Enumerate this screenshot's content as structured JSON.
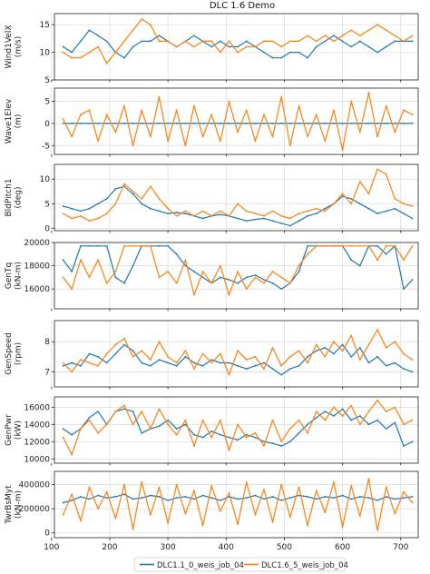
{
  "chart_data": {
    "type": "line",
    "title": "DLC 1.6 Demo",
    "xlim": [
      105,
      730
    ],
    "x_ticks": [
      100,
      200,
      300,
      400,
      500,
      600,
      700
    ],
    "grid": true,
    "legend_position": "bottom-center",
    "series_names": [
      "DLC1.1_0_weis_job_04",
      "DLC1.6_5_weis_job_04"
    ],
    "series_colors": [
      "#1f77b4",
      "#ff7f0e"
    ],
    "x": [
      120,
      135,
      150,
      165,
      180,
      195,
      210,
      225,
      240,
      255,
      270,
      285,
      300,
      315,
      330,
      345,
      360,
      375,
      390,
      405,
      420,
      435,
      450,
      465,
      480,
      495,
      510,
      525,
      540,
      555,
      570,
      585,
      600,
      615,
      630,
      645,
      660,
      675,
      690,
      705,
      720
    ],
    "panels": [
      {
        "ylabel_lines": [
          "Wind1VelX",
          "(m/s)"
        ],
        "ylim": [
          5,
          17
        ],
        "y_ticks": [
          5,
          10,
          15
        ],
        "y_tick_labels": [
          "5",
          "10",
          "15"
        ],
        "series": [
          {
            "name": "DLC1.1_0_weis_job_04",
            "values": [
              11,
              10,
              12,
              14,
              13,
              12,
              10,
              9,
              11,
              12,
              12,
              13,
              12,
              11,
              12,
              13,
              12,
              11,
              12,
              11,
              11,
              12,
              11,
              10,
              9,
              9,
              10,
              10,
              9,
              11,
              12,
              13,
              12,
              11,
              12,
              11,
              10,
              11,
              12,
              12,
              12
            ]
          },
          {
            "name": "DLC1.6_5_weis_job_04",
            "values": [
              10,
              9,
              9,
              10,
              11,
              8,
              10,
              12,
              14,
              16,
              15,
              12,
              12,
              11,
              12,
              11,
              12,
              12,
              10,
              12,
              10,
              11,
              11,
              12,
              12,
              11,
              12,
              12,
              13,
              12,
              13,
              12,
              13,
              14,
              13,
              14,
              15,
              14,
              13,
              12,
              13
            ]
          }
        ]
      },
      {
        "ylabel_lines": [
          "Wave1Elev",
          "(m)"
        ],
        "ylim": [
          -7,
          8
        ],
        "y_ticks": [
          -5,
          0,
          5
        ],
        "y_tick_labels": [
          "-5",
          "0",
          "5"
        ],
        "series": [
          {
            "name": "DLC1.1_0_weis_job_04",
            "values": [
              0,
              0,
              0,
              0,
              0,
              0,
              0,
              0,
              0,
              0,
              0,
              0,
              0,
              0,
              0,
              0,
              0,
              0,
              0,
              0,
              0,
              0,
              0,
              0,
              0,
              0,
              0,
              0,
              0,
              0,
              0,
              0,
              0,
              0,
              0,
              0,
              0,
              0,
              0,
              0,
              0
            ]
          },
          {
            "name": "DLC1.6_5_weis_job_04",
            "values": [
              1,
              -3,
              2,
              3,
              -4,
              2,
              -2,
              4,
              -5,
              3,
              -3,
              6,
              -4,
              3,
              -5,
              4,
              -3,
              2,
              -4,
              5,
              -2,
              3,
              -4,
              2,
              -3,
              6,
              -5,
              4,
              -3,
              2,
              -4,
              3,
              -6,
              5,
              -2,
              7,
              -3,
              4,
              -2,
              3,
              2
            ]
          }
        ]
      },
      {
        "ylabel_lines": [
          "BldPitch1",
          "(deg)"
        ],
        "ylim": [
          -0.5,
          13
        ],
        "y_ticks": [
          0,
          5,
          10
        ],
        "y_tick_labels": [
          "0",
          "5",
          "10"
        ],
        "series": [
          {
            "name": "DLC1.1_0_weis_job_04",
            "values": [
              4.5,
              4,
              3.5,
              4,
              5,
              6,
              8,
              8.5,
              7,
              5,
              4,
              3.5,
              3,
              3.2,
              3,
              2.5,
              2,
              2.5,
              2.8,
              2.5,
              2,
              1.5,
              1.8,
              2,
              1.5,
              1,
              0.5,
              1.5,
              2.5,
              3,
              4,
              5,
              6.5,
              6,
              5,
              4,
              3,
              3.5,
              4,
              3,
              2
            ]
          },
          {
            "name": "DLC1.6_5_weis_job_04",
            "values": [
              3,
              2,
              2.5,
              1.5,
              2,
              3,
              5,
              9,
              7.5,
              6,
              8.5,
              6,
              4,
              2.5,
              3.5,
              2.5,
              3.5,
              2.5,
              3.5,
              2.5,
              5,
              3.5,
              3,
              2.5,
              3.5,
              2.5,
              2,
              3,
              3.5,
              4,
              3.5,
              5,
              7,
              5,
              9.5,
              7,
              12,
              11,
              6,
              5,
              4.5
            ]
          }
        ]
      },
      {
        "ylabel_lines": [
          "GenTq",
          "(kN-m)"
        ],
        "ylim": [
          14300,
          20000
        ],
        "y_ticks": [
          16000,
          18000,
          20000
        ],
        "y_tick_labels": [
          "16000",
          "18000",
          "20000"
        ],
        "series": [
          {
            "name": "DLC1.1_0_weis_job_04",
            "values": [
              18500,
              17500,
              19700,
              19700,
              19700,
              19700,
              17000,
              16500,
              18000,
              19700,
              19700,
              19700,
              19700,
              19000,
              18000,
              17500,
              17000,
              16500,
              17000,
              16800,
              16500,
              17000,
              17200,
              16800,
              16500,
              16000,
              16500,
              17500,
              19700,
              19700,
              19700,
              19700,
              19700,
              18500,
              18000,
              19700,
              19700,
              19000,
              19700,
              16000,
              16800
            ]
          },
          {
            "name": "DLC1.6_5_weis_job_04",
            "values": [
              17000,
              16000,
              18500,
              17000,
              18500,
              16500,
              17500,
              19700,
              19700,
              19700,
              19700,
              17000,
              17500,
              16500,
              18500,
              15500,
              17500,
              16500,
              18000,
              15500,
              17500,
              16000,
              17000,
              16500,
              17500,
              17000,
              16500,
              18000,
              19000,
              19700,
              19700,
              19700,
              19700,
              19700,
              19700,
              19700,
              18500,
              19700,
              19700,
              18500,
              19700
            ]
          }
        ]
      },
      {
        "ylabel_lines": [
          "GenSpeed",
          "(rpm)"
        ],
        "ylim": [
          6.5,
          8.7
        ],
        "y_ticks": [
          7,
          8
        ],
        "y_tick_labels": [
          "7",
          "8"
        ],
        "series": [
          {
            "name": "DLC1.1_0_weis_job_04",
            "values": [
              7.2,
              7.3,
              7.2,
              7.6,
              7.5,
              7.3,
              7.6,
              7.9,
              7.7,
              7.3,
              7.2,
              7.4,
              7.3,
              7.2,
              7.5,
              7.3,
              7.2,
              7.4,
              7.3,
              7.3,
              7.2,
              7.1,
              7.2,
              7.3,
              7.1,
              6.9,
              7.1,
              7.2,
              7.5,
              7.7,
              7.8,
              7.6,
              7.9,
              7.5,
              7.8,
              7.3,
              7.5,
              7.2,
              7.3,
              7.1,
              7.0
            ]
          },
          {
            "name": "DLC1.6_5_weis_job_04",
            "values": [
              7.3,
              7.0,
              7.4,
              7.3,
              7.2,
              7.6,
              7.9,
              8.1,
              7.5,
              7.7,
              7.4,
              8.0,
              7.5,
              7.3,
              7.7,
              7.1,
              7.6,
              7.3,
              7.6,
              6.9,
              7.7,
              7.4,
              7.5,
              7.1,
              7.8,
              7.2,
              7.5,
              7.7,
              7.3,
              7.9,
              7.5,
              8.0,
              7.7,
              8.2,
              7.4,
              7.9,
              8.4,
              7.8,
              8.0,
              7.6,
              7.4
            ]
          }
        ]
      },
      {
        "ylabel_lines": [
          "GenPwr",
          "(kW)"
        ],
        "ylim": [
          9500,
          17200
        ],
        "y_ticks": [
          10000,
          12000,
          14000,
          16000
        ],
        "y_tick_labels": [
          "10000",
          "12000",
          "14000",
          "16000"
        ],
        "series": [
          {
            "name": "DLC1.1_0_weis_job_04",
            "values": [
              13500,
              12800,
              13500,
              14800,
              15500,
              14000,
              15500,
              15800,
              15500,
              13000,
              13500,
              13800,
              14500,
              13500,
              14000,
              12800,
              12500,
              13200,
              12800,
              12500,
              12200,
              12800,
              12500,
              12000,
              11800,
              11500,
              12000,
              13000,
              14000,
              14800,
              15500,
              15000,
              15800,
              14500,
              15000,
              14000,
              14500,
              13500,
              14200,
              11500,
              12000
            ]
          },
          {
            "name": "DLC1.6_5_weis_job_04",
            "values": [
              12500,
              10500,
              13500,
              14500,
              13000,
              14000,
              15500,
              16200,
              14000,
              15500,
              13500,
              15800,
              14000,
              12800,
              14500,
              11500,
              14500,
              12500,
              14500,
              11000,
              14000,
              12500,
              13000,
              11500,
              14500,
              12000,
              13500,
              14500,
              13000,
              15500,
              14500,
              16000,
              15000,
              16200,
              14000,
              15500,
              16800,
              15500,
              16000,
              14000,
              14500
            ]
          }
        ]
      },
      {
        "ylabel_lines": [
          "TwrBsMyt",
          "(kN-m)"
        ],
        "ylim": [
          -40000,
          510000
        ],
        "y_ticks": [
          0,
          200000,
          400000
        ],
        "y_tick_labels": [
          "0",
          "200000",
          "400000"
        ],
        "series": [
          {
            "name": "DLC1.1_0_weis_job_04",
            "values": [
              250000,
              270000,
              300000,
              280000,
              310000,
              290000,
              300000,
              320000,
              280000,
              290000,
              310000,
              300000,
              270000,
              290000,
              300000,
              280000,
              310000,
              290000,
              270000,
              300000,
              280000,
              290000,
              310000,
              280000,
              300000,
              270000,
              290000,
              310000,
              300000,
              280000,
              300000,
              290000,
              310000,
              280000,
              300000,
              290000,
              270000,
              300000,
              280000,
              290000,
              300000
            ]
          },
          {
            "name": "DLC1.6_5_weis_job_04",
            "values": [
              150000,
              320000,
              100000,
              380000,
              200000,
              340000,
              120000,
              400000,
              30000,
              420000,
              150000,
              380000,
              80000,
              400000,
              160000,
              350000,
              60000,
              390000,
              180000,
              330000,
              70000,
              420000,
              150000,
              360000,
              90000,
              400000,
              130000,
              380000,
              60000,
              350000,
              170000,
              420000,
              50000,
              390000,
              140000,
              450000,
              20000,
              380000,
              160000,
              340000,
              250000
            ]
          }
        ]
      }
    ]
  }
}
